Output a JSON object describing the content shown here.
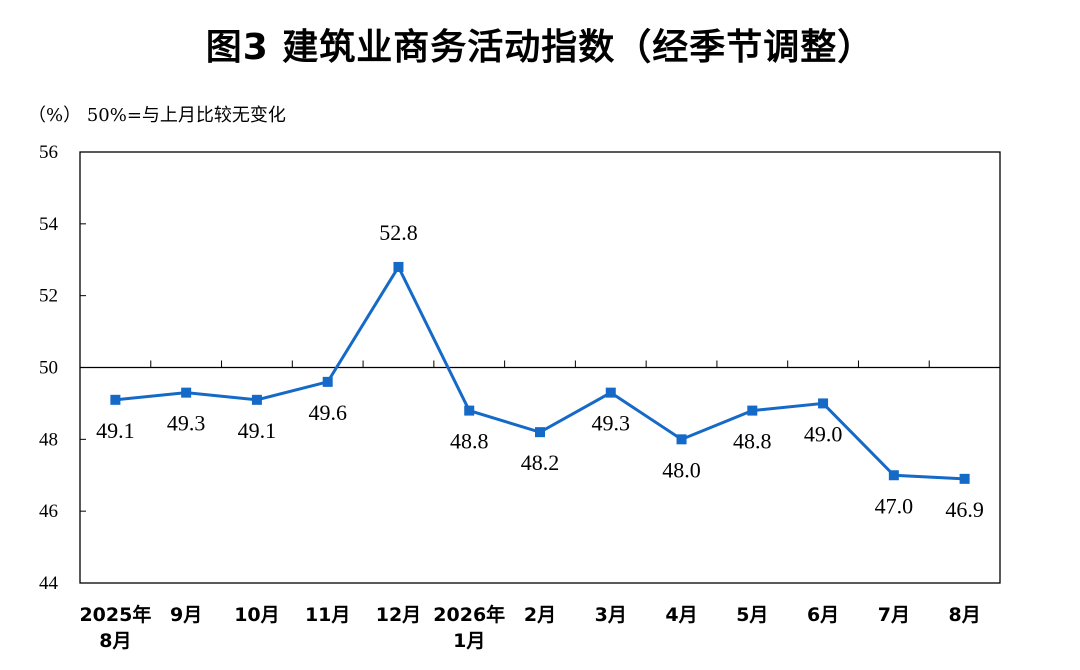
{
  "chart_data": {
    "type": "line",
    "title": "图3  建筑业商务活动指数（经季节调整）",
    "ylabel": "（%）  50%=与上月比较无变化",
    "xlabel": "",
    "ylim": [
      44,
      56
    ],
    "yticks": [
      44,
      46,
      48,
      50,
      52,
      54,
      56
    ],
    "reference_line": 50,
    "grid": false,
    "legend": "none",
    "categories": [
      [
        "2025年",
        "8月"
      ],
      [
        "9月"
      ],
      [
        "10月"
      ],
      [
        "11月"
      ],
      [
        "12月"
      ],
      [
        "2026年",
        "1月"
      ],
      [
        "2月"
      ],
      [
        "3月"
      ],
      [
        "4月"
      ],
      [
        "5月"
      ],
      [
        "6月"
      ],
      [
        "7月"
      ],
      [
        "8月"
      ]
    ],
    "series": [
      {
        "values": [
          49.1,
          49.3,
          49.1,
          49.6,
          52.8,
          48.8,
          48.2,
          49.3,
          48.0,
          48.8,
          49.0,
          47.0,
          46.9
        ],
        "labels": [
          "49.1",
          "49.3",
          "49.1",
          "49.6",
          "52.8",
          "48.8",
          "48.2",
          "49.3",
          "48.0",
          "48.8",
          "49.0",
          "47.0",
          "46.9"
        ],
        "color": "#1569C7"
      }
    ]
  }
}
